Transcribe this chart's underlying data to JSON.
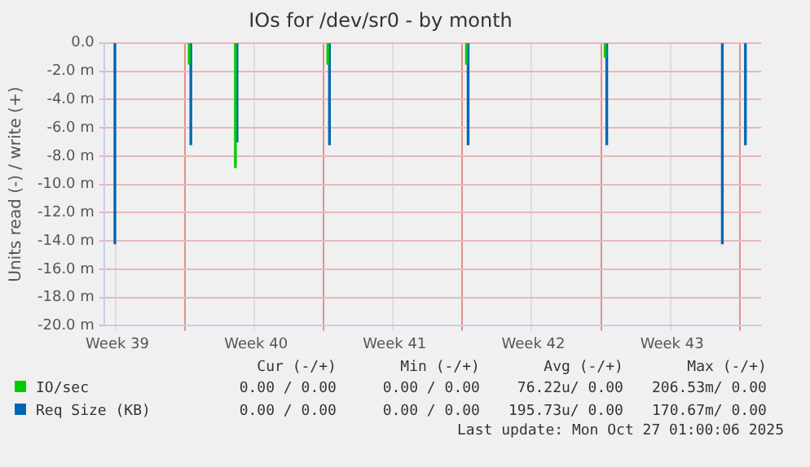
{
  "chart_data": {
    "type": "bar",
    "title": "IOs for /dev/sr0 - by month",
    "ylabel": "Units read (-) / write (+)",
    "categories": [
      null,
      null,
      null,
      null,
      "Week 39",
      null,
      null,
      null,
      null,
      null,
      null,
      null,
      null,
      null,
      null,
      null,
      null,
      null,
      null,
      null,
      null,
      null,
      null,
      null,
      null,
      null,
      null,
      null,
      null,
      null,
      null,
      null,
      null,
      null,
      null,
      null,
      null,
      null,
      null,
      null,
      null,
      null,
      null,
      null,
      null,
      null,
      "Week 40",
      null,
      null,
      null,
      null,
      null,
      null,
      null,
      null,
      null,
      null,
      null,
      null,
      null,
      null,
      null,
      null,
      null,
      null,
      null,
      null,
      null,
      null,
      null,
      null,
      null,
      null,
      null,
      null,
      null,
      null,
      null,
      null,
      null,
      null,
      null,
      null,
      null,
      null,
      null,
      null,
      null,
      "Week 41",
      null,
      null,
      null,
      null,
      null,
      null,
      null,
      null,
      null,
      null,
      null,
      null,
      null,
      null,
      null,
      null,
      null,
      null,
      null,
      null,
      null,
      null,
      null,
      null,
      null,
      null,
      null,
      null,
      null,
      null,
      null,
      null,
      null,
      null,
      null,
      null,
      null,
      null,
      null,
      null,
      null,
      "Week 42",
      null,
      null,
      null,
      null,
      null,
      null,
      null,
      null,
      null,
      null,
      null,
      null,
      null,
      null,
      null,
      null,
      null,
      null,
      null,
      null,
      null,
      null,
      null,
      null,
      null,
      null,
      null,
      null,
      null,
      null,
      null,
      null,
      null,
      null,
      null,
      null,
      null,
      null,
      null,
      null,
      null,
      "Week 43",
      null,
      null,
      null,
      null,
      null,
      null,
      null,
      null,
      null,
      null,
      null,
      null,
      null,
      null,
      null,
      null,
      null,
      null,
      null,
      null,
      null,
      null,
      null,
      null,
      null,
      null,
      null
    ],
    "series": [
      {
        "name": "IO/sec",
        "color": "#00cc00",
        "values": [
          null,
          null,
          null,
          null,
          null,
          null,
          null,
          null,
          null,
          null,
          null,
          null,
          null,
          null,
          null,
          null,
          null,
          null,
          null,
          null,
          null,
          null,
          null,
          null,
          null,
          null,
          -1.5,
          null,
          null,
          null,
          null,
          null,
          null,
          null,
          null,
          null,
          null,
          null,
          null,
          null,
          -8.8,
          null,
          null,
          null,
          null,
          null,
          null,
          null,
          null,
          null,
          null,
          null,
          null,
          null,
          null,
          null,
          null,
          null,
          null,
          null,
          null,
          null,
          null,
          null,
          null,
          null,
          null,
          null,
          -1.5,
          null,
          null,
          null,
          null,
          null,
          null,
          null,
          null,
          null,
          null,
          null,
          null,
          null,
          null,
          null,
          null,
          null,
          null,
          null,
          null,
          null,
          null,
          null,
          null,
          null,
          null,
          null,
          null,
          null,
          null,
          null,
          null,
          null,
          null,
          null,
          null,
          null,
          null,
          null,
          null,
          null,
          -1.5,
          null,
          null,
          null,
          null,
          null,
          null,
          null,
          null,
          null,
          null,
          null,
          null,
          null,
          null,
          null,
          null,
          null,
          null,
          null,
          null,
          null,
          null,
          null,
          null,
          null,
          null,
          null,
          null,
          null,
          null,
          null,
          null,
          null,
          null,
          null,
          null,
          null,
          null,
          null,
          null,
          null,
          -1,
          null,
          null,
          null,
          null,
          null,
          null,
          null,
          null,
          null,
          null,
          null,
          null,
          null,
          null,
          null,
          null,
          null,
          null,
          null,
          null,
          null,
          null,
          null,
          null,
          null,
          null,
          null,
          null,
          null,
          null,
          null,
          null,
          null,
          null,
          null,
          null,
          null,
          null,
          null,
          null,
          null,
          null,
          null,
          null,
          null,
          null,
          null
        ]
      },
      {
        "name": "Req Size (KB)",
        "color": "#0066b3",
        "values": [
          null,
          null,
          null,
          -14.2,
          null,
          null,
          null,
          null,
          null,
          null,
          null,
          null,
          null,
          null,
          null,
          null,
          null,
          null,
          null,
          null,
          null,
          null,
          null,
          null,
          null,
          null,
          -7.2,
          null,
          null,
          null,
          null,
          null,
          null,
          null,
          null,
          null,
          null,
          null,
          null,
          null,
          -7,
          null,
          null,
          null,
          null,
          null,
          null,
          null,
          null,
          null,
          null,
          null,
          null,
          null,
          null,
          null,
          null,
          null,
          null,
          null,
          null,
          null,
          null,
          null,
          null,
          null,
          null,
          null,
          -7.2,
          null,
          null,
          null,
          null,
          null,
          null,
          null,
          null,
          null,
          null,
          null,
          null,
          null,
          null,
          null,
          null,
          null,
          null,
          null,
          null,
          null,
          null,
          null,
          null,
          null,
          null,
          null,
          null,
          null,
          null,
          null,
          null,
          null,
          null,
          null,
          null,
          null,
          null,
          null,
          null,
          null,
          -7.2,
          null,
          null,
          null,
          null,
          null,
          null,
          null,
          null,
          null,
          null,
          null,
          null,
          null,
          null,
          null,
          null,
          null,
          null,
          null,
          null,
          null,
          null,
          null,
          null,
          null,
          null,
          null,
          null,
          null,
          null,
          null,
          null,
          null,
          null,
          null,
          null,
          null,
          null,
          null,
          null,
          null,
          -7.2,
          null,
          null,
          null,
          null,
          null,
          null,
          null,
          null,
          null,
          null,
          null,
          null,
          null,
          null,
          null,
          null,
          null,
          null,
          null,
          null,
          null,
          null,
          null,
          null,
          null,
          null,
          null,
          null,
          null,
          null,
          null,
          null,
          null,
          null,
          -14.2,
          null,
          null,
          null,
          null,
          null,
          null,
          -7.2,
          null,
          null,
          null,
          null,
          null
        ]
      }
    ],
    "ylim": [
      -20,
      0
    ],
    "yticks": [
      {
        "value": -20,
        "label": "-20.0 m"
      },
      {
        "value": -18,
        "label": "-18.0 m"
      },
      {
        "value": -16,
        "label": "-16.0 m"
      },
      {
        "value": -14,
        "label": "-14.0 m"
      },
      {
        "value": -12,
        "label": "-12.0 m"
      },
      {
        "value": -10,
        "label": "-10.0 m"
      },
      {
        "value": -8,
        "label": "-8.0 m"
      },
      {
        "value": -6,
        "label": "-6.0 m"
      },
      {
        "value": -4,
        "label": "-4.0 m"
      },
      {
        "value": -2,
        "label": "-2.0 m"
      },
      {
        "value": 0,
        "label": "0.0"
      }
    ],
    "grid": true,
    "legend": "bottom",
    "annotations": [
      "Cur (-/+)",
      "Min (-/+)",
      "Avg (-/+)",
      "Max (-/+)",
      "0.00 / 0.00",
      "0.00 / 0.00",
      "76.22u/ 0.00",
      "206.53m/ 0.00",
      "0.00 / 0.00",
      "0.00 / 0.00",
      "195.73u/ 0.00",
      "170.67m/ 0.00",
      "Last update: Mon Oct 27 01:00:06 2025"
    ]
  }
}
